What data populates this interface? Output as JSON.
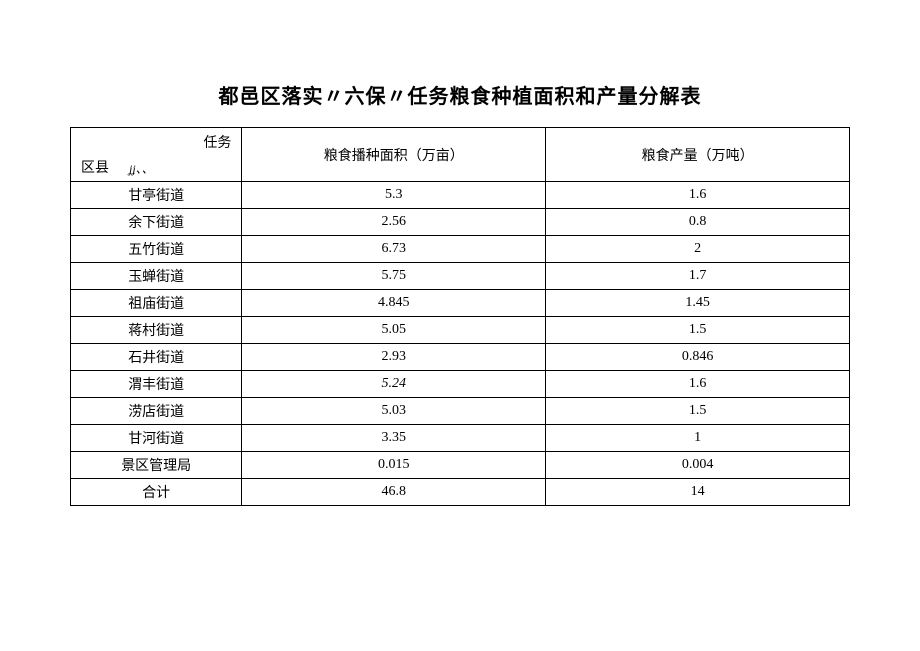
{
  "title": "都邑区落实〃六保〃任务粮食种植面积和产量分解表",
  "header": {
    "diag_top": "任务",
    "diag_bottom": "区县",
    "diag_mid": "ʝʝ、、",
    "col_area": "粮食播种面积（万亩）",
    "col_yield": "粮食产量（万吨）"
  },
  "rows": [
    {
      "name": "甘亭街道",
      "area": "5.3",
      "yield": "1.6"
    },
    {
      "name": "余下街道",
      "area": "2.56",
      "yield": "0.8"
    },
    {
      "name": "五竹街道",
      "area": "6.73",
      "yield": "2"
    },
    {
      "name": "玉蝉街道",
      "area": "5.75",
      "yield": "1.7"
    },
    {
      "name": "祖庙街道",
      "area": "4.845",
      "yield": "1.45"
    },
    {
      "name": "蒋村街道",
      "area": "5.05",
      "yield": "1.5"
    },
    {
      "name": "石井街道",
      "area": "2.93",
      "yield": "0.846"
    },
    {
      "name": "渭丰街道",
      "area": "5.24",
      "yield": "1.6",
      "italic_area": true
    },
    {
      "name": "涝店街道",
      "area": "5.03",
      "yield": "1.5"
    },
    {
      "name": "甘河街道",
      "area": "3.35",
      "yield": "1"
    },
    {
      "name": "景区管理局",
      "area": "0.015",
      "yield": "0.004"
    },
    {
      "name": "合计",
      "area": "46.8",
      "yield": "14"
    }
  ]
}
